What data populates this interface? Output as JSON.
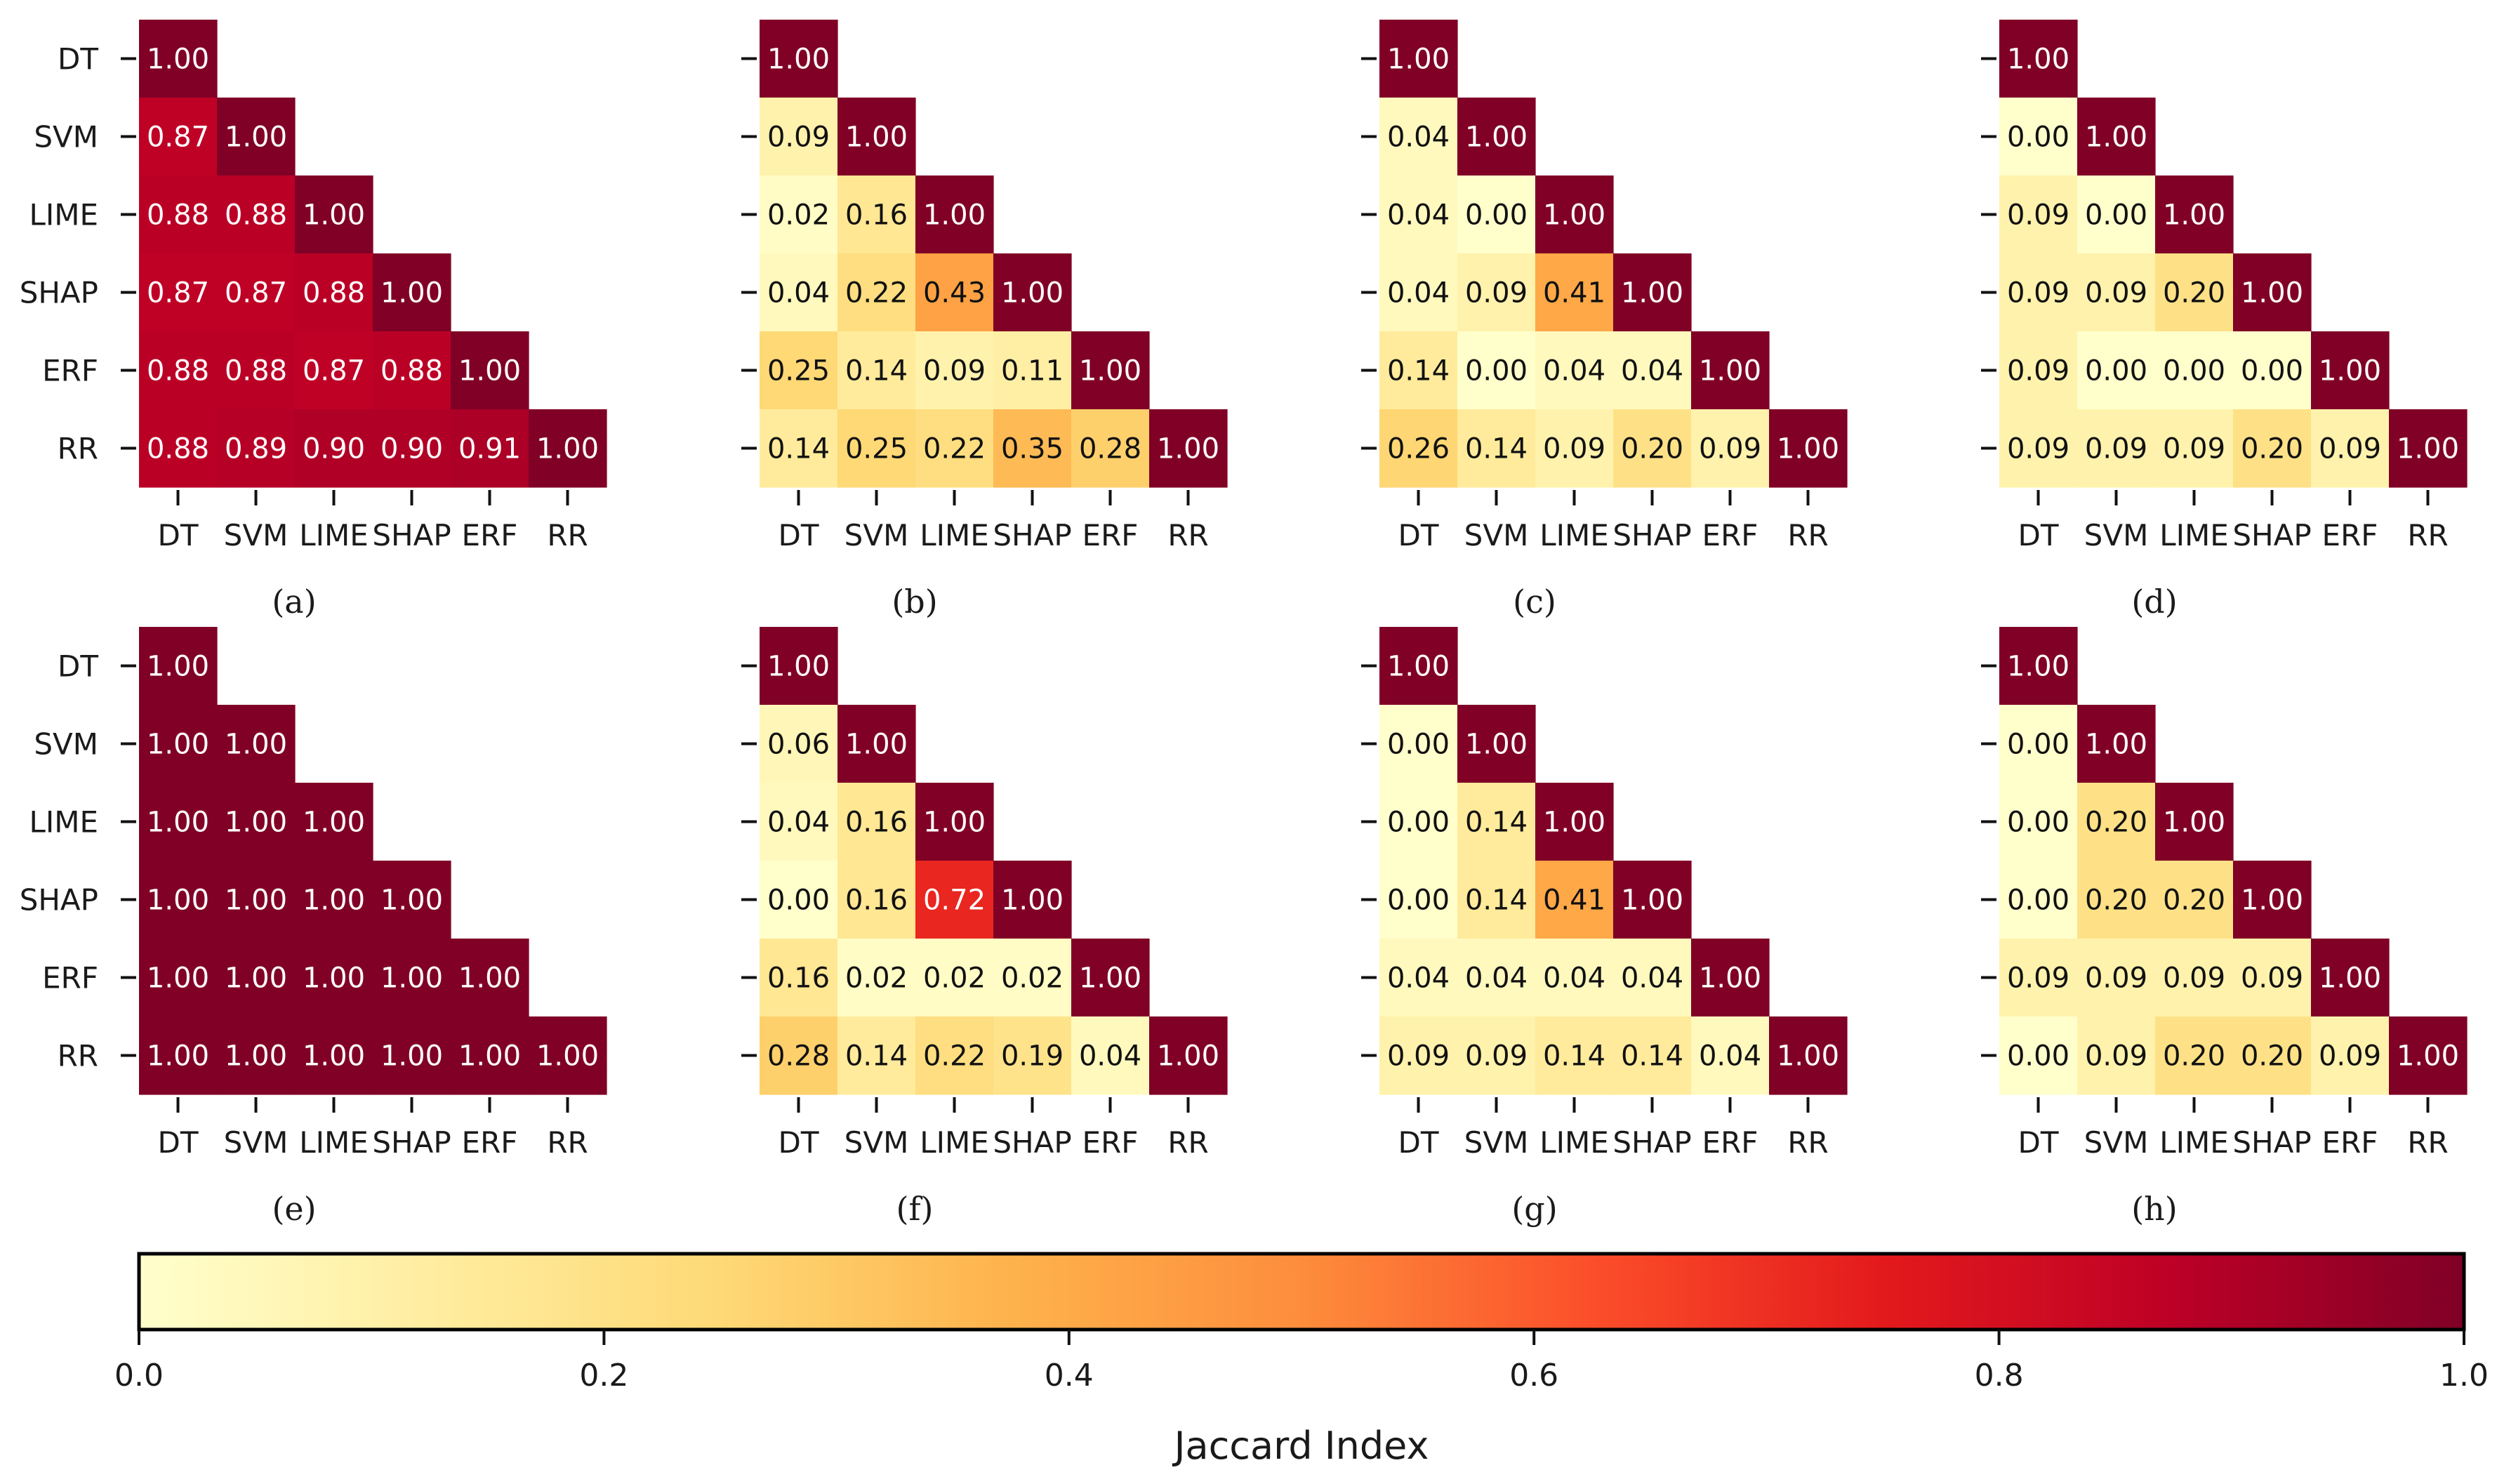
{
  "chart_data": {
    "type": "heatmap",
    "description_type": "lower-triangular correlation heatmaps",
    "labels": [
      "DT",
      "SVM",
      "LIME",
      "SHAP",
      "ERF",
      "RR"
    ],
    "colormap": "YlOrRd",
    "colormap_stops": [
      "#ffffcc",
      "#ffeda0",
      "#fed976",
      "#feb24c",
      "#fd8d3c",
      "#fc4e2a",
      "#e31a1c",
      "#bd0026",
      "#800026"
    ],
    "value_range": [
      0,
      1
    ],
    "colorbar": {
      "label": "Jaccard Index",
      "ticks": [
        "0.0",
        "0.2",
        "0.4",
        "0.6",
        "0.8",
        "1.0"
      ],
      "tick_values": [
        0.0,
        0.2,
        0.4,
        0.6,
        0.8,
        1.0
      ]
    },
    "panels": [
      {
        "label": "(a)",
        "matrix": [
          [
            1.0
          ],
          [
            0.87,
            1.0
          ],
          [
            0.88,
            0.88,
            1.0
          ],
          [
            0.87,
            0.87,
            0.88,
            1.0
          ],
          [
            0.88,
            0.88,
            0.87,
            0.88,
            1.0
          ],
          [
            0.88,
            0.89,
            0.9,
            0.9,
            0.91,
            1.0
          ]
        ]
      },
      {
        "label": "(b)",
        "matrix": [
          [
            1.0
          ],
          [
            0.09,
            1.0
          ],
          [
            0.02,
            0.16,
            1.0
          ],
          [
            0.04,
            0.22,
            0.43,
            1.0
          ],
          [
            0.25,
            0.14,
            0.09,
            0.11,
            1.0
          ],
          [
            0.14,
            0.25,
            0.22,
            0.35,
            0.28,
            1.0
          ]
        ]
      },
      {
        "label": "(c)",
        "matrix": [
          [
            1.0
          ],
          [
            0.04,
            1.0
          ],
          [
            0.04,
            0.0,
            1.0
          ],
          [
            0.04,
            0.09,
            0.41,
            1.0
          ],
          [
            0.14,
            0.0,
            0.04,
            0.04,
            1.0
          ],
          [
            0.26,
            0.14,
            0.09,
            0.2,
            0.09,
            1.0
          ]
        ]
      },
      {
        "label": "(d)",
        "matrix": [
          [
            1.0
          ],
          [
            0.0,
            1.0
          ],
          [
            0.09,
            0.0,
            1.0
          ],
          [
            0.09,
            0.09,
            0.2,
            1.0
          ],
          [
            0.09,
            0.0,
            0.0,
            0.0,
            1.0
          ],
          [
            0.09,
            0.09,
            0.09,
            0.2,
            0.09,
            1.0
          ]
        ]
      },
      {
        "label": "(e)",
        "matrix": [
          [
            1.0
          ],
          [
            1.0,
            1.0
          ],
          [
            1.0,
            1.0,
            1.0
          ],
          [
            1.0,
            1.0,
            1.0,
            1.0
          ],
          [
            1.0,
            1.0,
            1.0,
            1.0,
            1.0
          ],
          [
            1.0,
            1.0,
            1.0,
            1.0,
            1.0,
            1.0
          ]
        ]
      },
      {
        "label": "(f)",
        "matrix": [
          [
            1.0
          ],
          [
            0.06,
            1.0
          ],
          [
            0.04,
            0.16,
            1.0
          ],
          [
            0.0,
            0.16,
            0.72,
            1.0
          ],
          [
            0.16,
            0.02,
            0.02,
            0.02,
            1.0
          ],
          [
            0.28,
            0.14,
            0.22,
            0.19,
            0.04,
            1.0
          ]
        ]
      },
      {
        "label": "(g)",
        "matrix": [
          [
            1.0
          ],
          [
            0.0,
            1.0
          ],
          [
            0.0,
            0.14,
            1.0
          ],
          [
            0.0,
            0.14,
            0.41,
            1.0
          ],
          [
            0.04,
            0.04,
            0.04,
            0.04,
            1.0
          ],
          [
            0.09,
            0.09,
            0.14,
            0.14,
            0.04,
            1.0
          ]
        ]
      },
      {
        "label": "(h)",
        "matrix": [
          [
            1.0
          ],
          [
            0.0,
            1.0
          ],
          [
            0.0,
            0.2,
            1.0
          ],
          [
            0.0,
            0.2,
            0.2,
            1.0
          ],
          [
            0.09,
            0.09,
            0.09,
            0.09,
            1.0
          ],
          [
            0.0,
            0.09,
            0.2,
            0.2,
            0.09,
            1.0
          ]
        ]
      }
    ]
  }
}
